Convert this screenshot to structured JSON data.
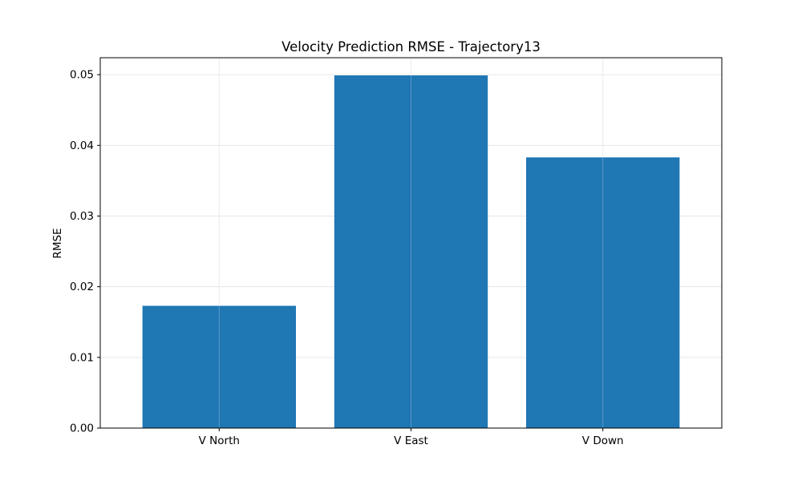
{
  "chart_data": {
    "type": "bar",
    "title": "Velocity Prediction RMSE - Trajectory13",
    "xlabel": "",
    "ylabel": "RMSE",
    "categories": [
      "V North",
      "V East",
      "V Down"
    ],
    "values": [
      0.0173,
      0.0499,
      0.0383
    ],
    "ylim": [
      0,
      0.0524
    ],
    "yticks": [
      0.0,
      0.01,
      0.02,
      0.03,
      0.04,
      0.05
    ],
    "ytick_labels": [
      "0.00",
      "0.01",
      "0.02",
      "0.03",
      "0.04",
      "0.05"
    ],
    "grid": true,
    "bar_color": "#1f77b4",
    "grid_color": "#e6e6e6"
  }
}
